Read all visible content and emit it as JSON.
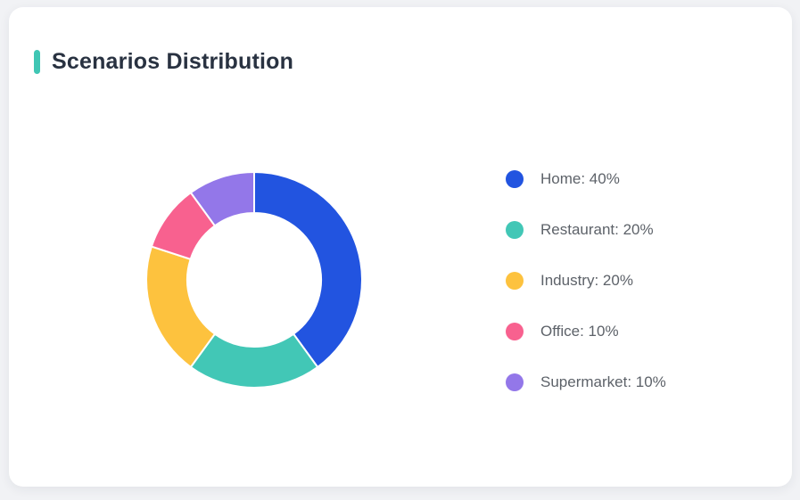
{
  "page": {
    "background_color": "#f1f2f5"
  },
  "card": {
    "background_color": "#ffffff"
  },
  "header": {
    "title": "Scenarios Distribution",
    "accent_color": "#3fc6b4"
  },
  "legend": {
    "items": [
      {
        "label": "Home: 40%",
        "color": "#2254e0"
      },
      {
        "label": "Restaurant: 20%",
        "color": "#42c7b6"
      },
      {
        "label": "Industry: 20%",
        "color": "#fdc23e"
      },
      {
        "label": "Office: 10%",
        "color": "#f8618f"
      },
      {
        "label": "Supermarket: 10%",
        "color": "#9377e9"
      }
    ]
  },
  "chart_data": {
    "type": "pie",
    "variant": "donut",
    "title": "Scenarios Distribution",
    "unit": "%",
    "start_angle_deg": 0,
    "direction": "clockwise",
    "inner_radius_ratio": 0.62,
    "legend_position": "right",
    "labels_format": "{name}: {value}%",
    "series": [
      {
        "name": "Home",
        "value": 40,
        "color": "#2254e0"
      },
      {
        "name": "Restaurant",
        "value": 20,
        "color": "#42c7b6"
      },
      {
        "name": "Industry",
        "value": 20,
        "color": "#fdc23e"
      },
      {
        "name": "Office",
        "value": 10,
        "color": "#f8618f"
      },
      {
        "name": "Supermarket",
        "value": 10,
        "color": "#9377e9"
      }
    ]
  }
}
